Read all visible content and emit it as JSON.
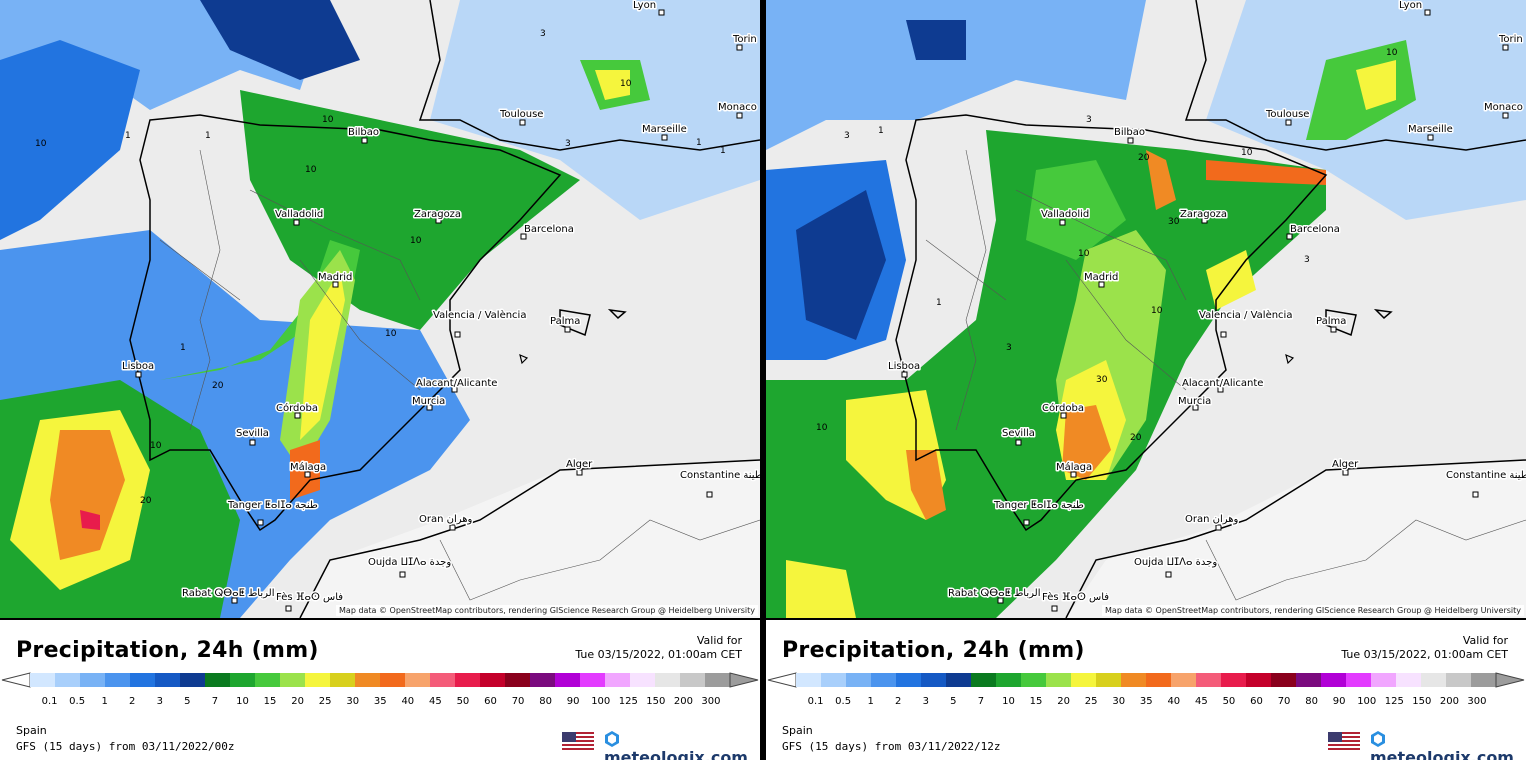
{
  "panels": [
    {
      "title": "Precipitation, 24h (mm)",
      "valid_label": "Valid for",
      "valid_time": "Tue 03/15/2022, 01:00am CET",
      "region": "Spain",
      "model_run": "GFS (15 days) from  03/11/2022/00z",
      "attribution": "Map data © OpenStreetMap contributors, rendering GIScience Research Group @ Heidelberg University",
      "brand": "meteologix.com",
      "cities": [
        "Lyon",
        "Torin",
        "Monaco",
        "Toulouse",
        "Marseille",
        "Bilbao",
        "Zaragoza",
        "Barcelona",
        "Valladolid",
        "Madrid",
        "Valencia / València",
        "Palma",
        "Lisboa",
        "Alacant/Alicante",
        "Murcia",
        "Córdoba",
        "Sevilla",
        "Málaga",
        "Alger",
        "Constantine قسنطينة",
        "Tanger ⵟⴰⵏⵊⴰ طنجة",
        "Oran وهران",
        "Oujda ⵡⵊⴷⴰ وجدة",
        "Rabat ⵕⴱⴰⵟ الرباط",
        "Fès ⴼⴰⵙ فاس"
      ],
      "contour_labels": [
        "1",
        "1",
        "1",
        "3",
        "10",
        "10",
        "10",
        "10",
        "10",
        "10",
        "20",
        "20",
        "1",
        "1",
        "3",
        "10"
      ]
    },
    {
      "title": "Precipitation, 24h (mm)",
      "valid_label": "Valid for",
      "valid_time": "Tue 03/15/2022, 01:00am CET",
      "region": "Spain",
      "model_run": "GFS (15 days) from  03/11/2022/12z",
      "attribution": "Map data © OpenStreetMap contributors, rendering GIScience Research Group @ Heidelberg University",
      "brand": "meteologix.com",
      "cities": [
        "Lyon",
        "Torin",
        "Monaco",
        "Toulouse",
        "Marseille",
        "Bilbao",
        "Zaragoza",
        "Barcelona",
        "Valladolid",
        "Madrid",
        "Valencia / València",
        "Palma",
        "Lisboa",
        "Alacant/Alicante",
        "Murcia",
        "Córdoba",
        "Sevilla",
        "Málaga",
        "Alger",
        "Constantine قسنطينة",
        "Tanger ⵟⴰⵏⵊⴰ طنجة",
        "Oran وهران",
        "Oujda ⵡⵊⴷⴰ وجدة",
        "Rabat ⵕⴱⴰⵟ الرباط",
        "Fès ⴼⴰⵙ فاس"
      ],
      "contour_labels": [
        "3",
        "1",
        "3",
        "10",
        "20",
        "30",
        "10",
        "10",
        "10",
        "3",
        "30",
        "20",
        "10",
        "3",
        "1"
      ]
    }
  ],
  "legend": {
    "ticks": [
      "0.1",
      "0.5",
      "1",
      "2",
      "3",
      "5",
      "7",
      "10",
      "15",
      "20",
      "25",
      "30",
      "35",
      "40",
      "45",
      "50",
      "60",
      "70",
      "80",
      "90",
      "100",
      "125",
      "150",
      "200",
      "300"
    ],
    "colors": [
      "#d2e7ff",
      "#a8cffb",
      "#78b2f5",
      "#4b94ee",
      "#2274e0",
      "#1559c4",
      "#0e3b91",
      "#0a7a1f",
      "#1ea62f",
      "#46c93c",
      "#9be24b",
      "#f5f53d",
      "#d8d01c",
      "#f08a24",
      "#f26a1c",
      "#f7a36b",
      "#f45c79",
      "#e81c4c",
      "#c4002a",
      "#8a001c",
      "#7a0a7e",
      "#b100d6",
      "#e33bff",
      "#f1a6ff",
      "#f7e2ff",
      "#e6e6e6",
      "#c8c8c8",
      "#9c9c9c"
    ]
  },
  "colors": {
    "land_gray": "#ececec",
    "sea_light": "#b9d7f7",
    "brand_blue": "#1d3a6b"
  }
}
